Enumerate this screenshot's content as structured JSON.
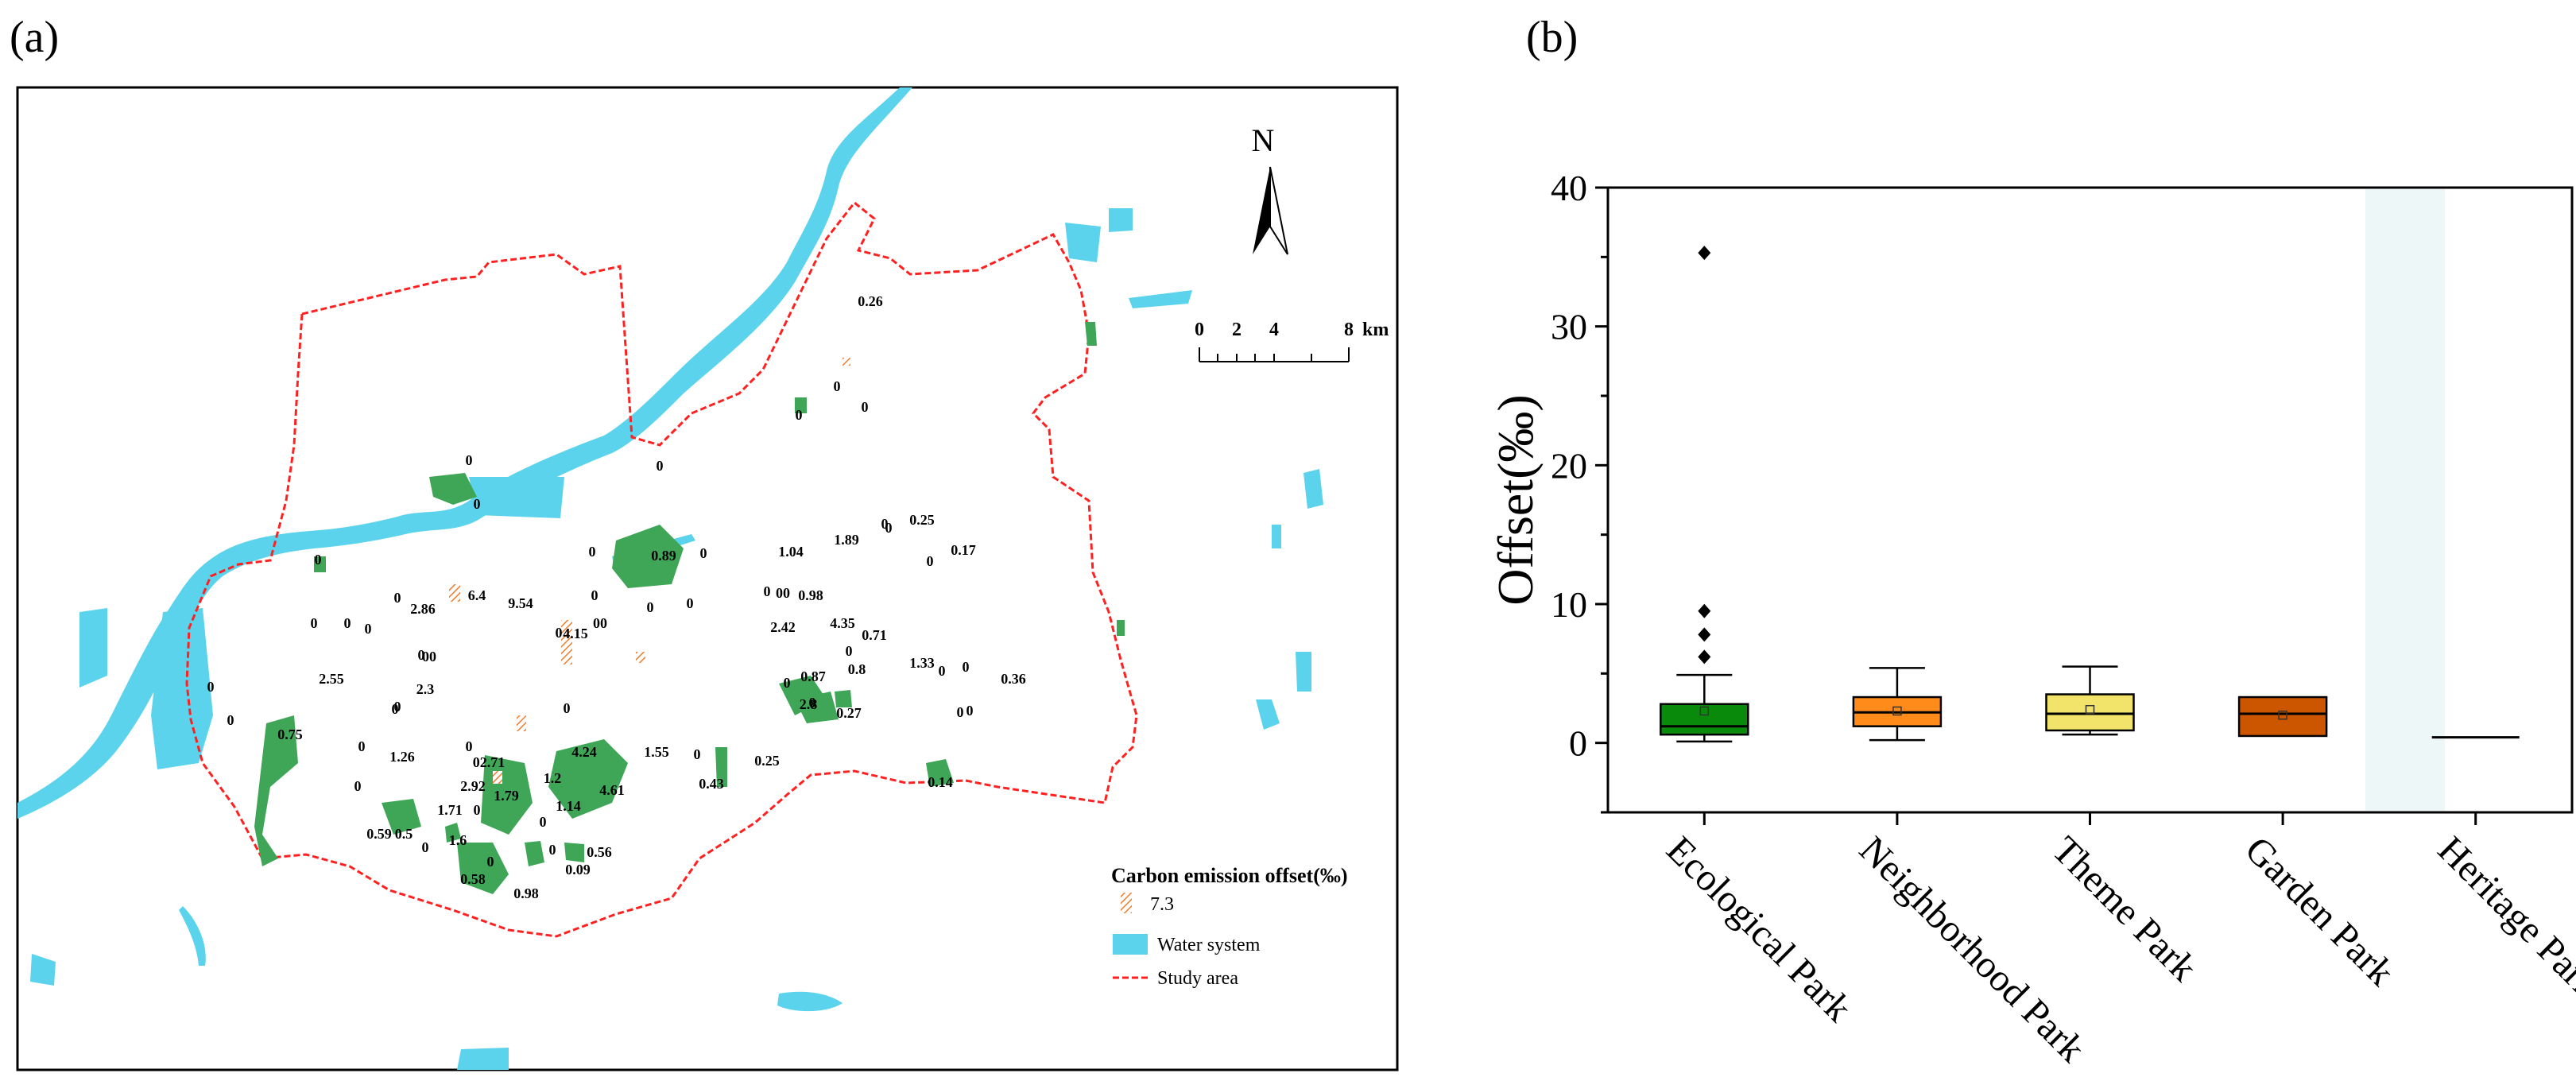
{
  "panel_a": {
    "label": "(a)",
    "north_label": "N",
    "scale_bar": {
      "ticks": [
        "0",
        "2",
        "4",
        "8"
      ],
      "unit": "km"
    },
    "legend": {
      "title": "Carbon emission offset(‰)",
      "items": [
        {
          "label": "7.3",
          "kind": "hatched"
        },
        {
          "label": "Water system",
          "kind": "water"
        },
        {
          "label": "Study area",
          "kind": "boundary"
        }
      ]
    },
    "colors": {
      "water": "#5bd3ec",
      "park": "#3fa657",
      "hatch": "#f07c2c",
      "boundary": "#ff2020"
    },
    "park_labels": [
      "0.26",
      "0",
      "0",
      "0",
      "0",
      "0",
      "0",
      "0.89",
      "0",
      "0",
      "1.89",
      "1.04",
      "0.25",
      "0",
      "0.17",
      "0",
      "2.86",
      "6.4",
      "9.54",
      "0",
      "4.15",
      "00",
      "0",
      "0",
      "0",
      "00",
      "0.98",
      "2.42",
      "4.35",
      "0.71",
      "1.33",
      "0",
      "2.55",
      "0",
      "00",
      "2.3",
      "0",
      "0.87",
      "0.8",
      "2.8",
      "0.27",
      "0.36",
      "0",
      "0.75",
      "1.26",
      "02.71",
      "4.24",
      "1.2",
      "1.55",
      "0.25",
      "0.43",
      "0",
      "2.92",
      "1.79",
      "4.61",
      "0.14",
      "1.71",
      "1.14",
      "0.59",
      "0.5",
      "1.6",
      "0.56",
      "0.09",
      "0.58",
      "0.98",
      "0",
      "0",
      "0",
      "0",
      "0",
      "0",
      "0",
      "0",
      "0",
      "0",
      "0",
      "0",
      "0",
      "0",
      "0",
      "0",
      "0",
      "0",
      "0",
      "0",
      "0",
      "0",
      "0",
      "0"
    ]
  },
  "chart_data": {
    "type": "box",
    "panel_label": "(b)",
    "categories": [
      "Ecological Park",
      "Neighborhood Park",
      "Theme Park",
      "Garden Park",
      "Heritage Park"
    ],
    "ylabel": "Offset(‰)",
    "ylim": [
      -5,
      40
    ],
    "yticks": [
      0,
      10,
      20,
      30,
      40
    ],
    "boxes": [
      {
        "name": "Ecological Park",
        "color": "#0a8a0a",
        "whisker_low": 0.1,
        "q1": 0.6,
        "median": 1.2,
        "q3": 2.8,
        "whisker_high": 4.9,
        "mean": 2.3,
        "outliers": [
          6.2,
          7.8,
          9.5,
          35.3
        ]
      },
      {
        "name": "Neighborhood Park",
        "color": "#ff8c1a",
        "whisker_low": 0.2,
        "q1": 1.2,
        "median": 2.2,
        "q3": 3.3,
        "whisker_high": 5.4,
        "mean": 2.3,
        "outliers": []
      },
      {
        "name": "Theme Park",
        "color": "#f2e36b",
        "whisker_low": 0.6,
        "q1": 0.9,
        "median": 2.1,
        "q3": 3.5,
        "whisker_high": 5.5,
        "mean": 2.4,
        "outliers": []
      },
      {
        "name": "Garden Park",
        "color": "#cc5500",
        "whisker_low": 0.5,
        "q1": 0.5,
        "median": 2.1,
        "q3": 3.3,
        "whisker_high": 3.3,
        "mean": 2.0,
        "outliers": []
      },
      {
        "name": "Heritage Park",
        "color": "#000000",
        "whisker_low": 0.4,
        "q1": 0.4,
        "median": 0.4,
        "q3": 0.4,
        "whisker_high": 0.4,
        "mean": 0.4,
        "outliers": []
      }
    ]
  }
}
